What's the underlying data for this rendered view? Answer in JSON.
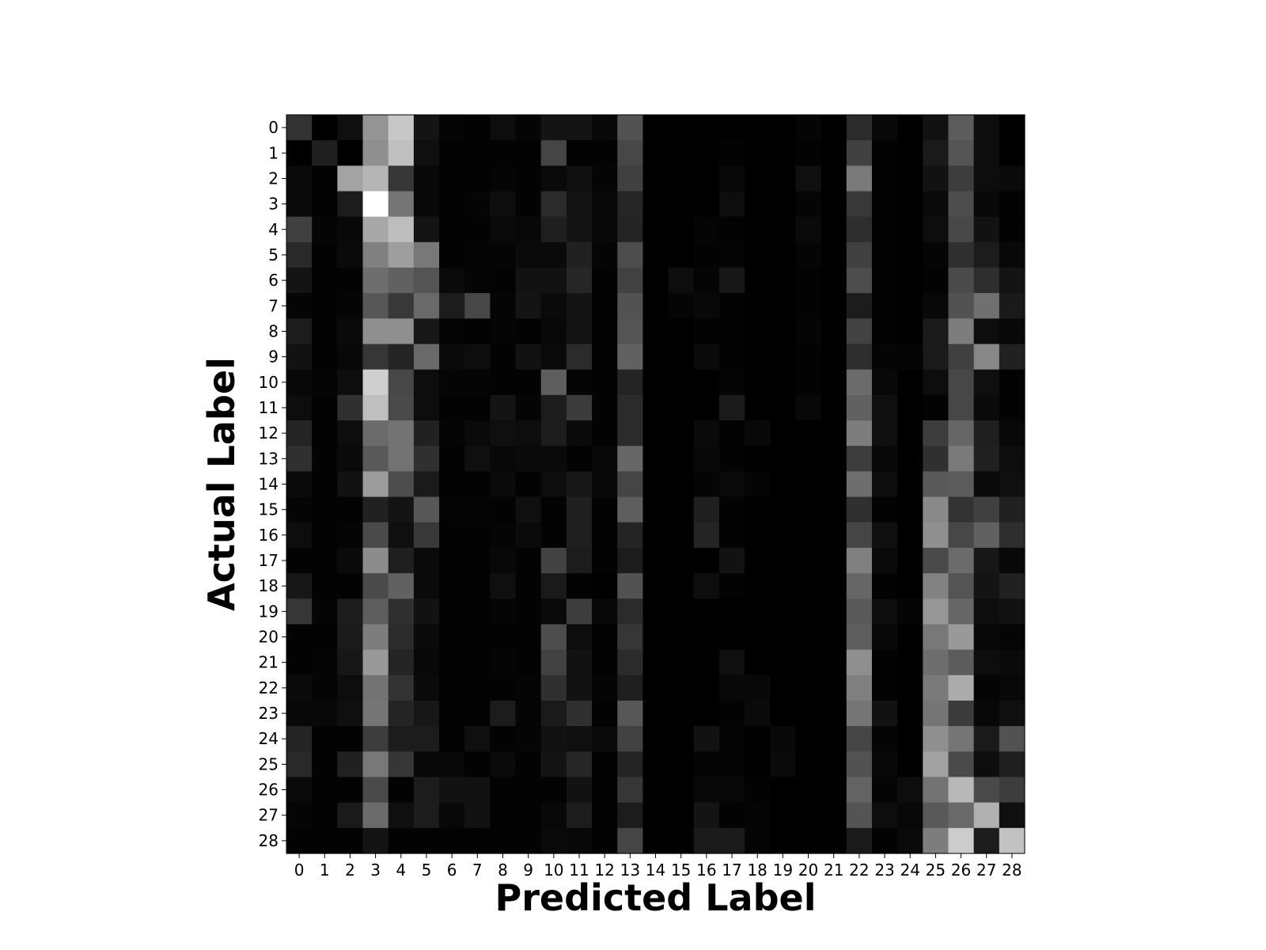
{
  "chart_data": {
    "type": "heatmap",
    "title": "",
    "xlabel": "Predicted Label",
    "ylabel": "Actual Label",
    "colormap": "gray",
    "x_categories": [
      "0",
      "1",
      "2",
      "3",
      "4",
      "5",
      "6",
      "7",
      "8",
      "9",
      "10",
      "11",
      "12",
      "13",
      "14",
      "15",
      "16",
      "17",
      "18",
      "19",
      "20",
      "21",
      "22",
      "23",
      "24",
      "25",
      "26",
      "27",
      "28"
    ],
    "y_categories": [
      "0",
      "1",
      "2",
      "3",
      "4",
      "5",
      "6",
      "7",
      "8",
      "9",
      "10",
      "11",
      "12",
      "13",
      "14",
      "15",
      "16",
      "17",
      "18",
      "19",
      "20",
      "21",
      "22",
      "23",
      "24",
      "25",
      "26",
      "27",
      "28"
    ],
    "value_range": [
      0,
      1
    ],
    "values": [
      [
        0.2,
        0.0,
        0.06,
        0.58,
        0.78,
        0.08,
        0.02,
        0.01,
        0.05,
        0.02,
        0.08,
        0.08,
        0.03,
        0.32,
        0.0,
        0.0,
        0.0,
        0.0,
        0.0,
        0.0,
        0.02,
        0.0,
        0.17,
        0.03,
        0.0,
        0.07,
        0.36,
        0.05,
        0.0
      ],
      [
        0.0,
        0.12,
        0.0,
        0.56,
        0.75,
        0.06,
        0.01,
        0.01,
        0.01,
        0.01,
        0.27,
        0.01,
        0.01,
        0.28,
        0.0,
        0.0,
        0.0,
        0.01,
        0.0,
        0.0,
        0.01,
        0.0,
        0.25,
        0.01,
        0.0,
        0.1,
        0.33,
        0.05,
        0.0
      ],
      [
        0.04,
        0.01,
        0.64,
        0.71,
        0.21,
        0.03,
        0.01,
        0.01,
        0.02,
        0.01,
        0.04,
        0.06,
        0.02,
        0.25,
        0.0,
        0.0,
        0.0,
        0.03,
        0.0,
        0.0,
        0.06,
        0.0,
        0.48,
        0.01,
        0.0,
        0.07,
        0.24,
        0.05,
        0.04
      ],
      [
        0.04,
        0.01,
        0.11,
        1.0,
        0.46,
        0.03,
        0.01,
        0.02,
        0.05,
        0.01,
        0.17,
        0.08,
        0.03,
        0.15,
        0.0,
        0.0,
        0.0,
        0.05,
        0.0,
        0.0,
        0.02,
        0.0,
        0.22,
        0.01,
        0.0,
        0.04,
        0.3,
        0.03,
        0.01
      ],
      [
        0.25,
        0.02,
        0.03,
        0.66,
        0.74,
        0.08,
        0.01,
        0.01,
        0.04,
        0.03,
        0.12,
        0.08,
        0.03,
        0.14,
        0.0,
        0.0,
        0.02,
        0.01,
        0.0,
        0.0,
        0.04,
        0.0,
        0.18,
        0.01,
        0.0,
        0.05,
        0.28,
        0.07,
        0.01
      ],
      [
        0.16,
        0.01,
        0.04,
        0.5,
        0.62,
        0.47,
        0.01,
        0.02,
        0.02,
        0.04,
        0.04,
        0.13,
        0.02,
        0.3,
        0.0,
        0.0,
        0.01,
        0.02,
        0.0,
        0.0,
        0.02,
        0.0,
        0.25,
        0.01,
        0.0,
        0.02,
        0.19,
        0.11,
        0.03
      ],
      [
        0.08,
        0.01,
        0.01,
        0.43,
        0.38,
        0.33,
        0.04,
        0.02,
        0.01,
        0.07,
        0.07,
        0.15,
        0.01,
        0.26,
        0.0,
        0.05,
        0.02,
        0.09,
        0.0,
        0.0,
        0.01,
        0.0,
        0.3,
        0.01,
        0.0,
        0.01,
        0.29,
        0.18,
        0.08
      ],
      [
        0.02,
        0.01,
        0.02,
        0.34,
        0.22,
        0.41,
        0.11,
        0.28,
        0.02,
        0.08,
        0.04,
        0.08,
        0.01,
        0.32,
        0.0,
        0.02,
        0.03,
        0.01,
        0.0,
        0.0,
        0.01,
        0.0,
        0.11,
        0.01,
        0.0,
        0.03,
        0.32,
        0.44,
        0.1
      ],
      [
        0.11,
        0.01,
        0.04,
        0.56,
        0.56,
        0.09,
        0.02,
        0.01,
        0.02,
        0.01,
        0.03,
        0.08,
        0.01,
        0.33,
        0.0,
        0.0,
        0.01,
        0.01,
        0.0,
        0.0,
        0.02,
        0.0,
        0.26,
        0.01,
        0.0,
        0.1,
        0.49,
        0.05,
        0.03
      ],
      [
        0.07,
        0.01,
        0.03,
        0.21,
        0.14,
        0.41,
        0.04,
        0.05,
        0.01,
        0.07,
        0.04,
        0.17,
        0.01,
        0.38,
        0.0,
        0.0,
        0.04,
        0.01,
        0.0,
        0.0,
        0.01,
        0.0,
        0.18,
        0.02,
        0.02,
        0.1,
        0.25,
        0.53,
        0.13
      ],
      [
        0.03,
        0.02,
        0.05,
        0.81,
        0.28,
        0.05,
        0.02,
        0.02,
        0.01,
        0.01,
        0.37,
        0.02,
        0.01,
        0.14,
        0.0,
        0.0,
        0.0,
        0.02,
        0.0,
        0.0,
        0.01,
        0.0,
        0.42,
        0.03,
        0.0,
        0.05,
        0.28,
        0.06,
        0.01
      ],
      [
        0.05,
        0.01,
        0.19,
        0.75,
        0.29,
        0.05,
        0.01,
        0.01,
        0.08,
        0.02,
        0.11,
        0.23,
        0.01,
        0.17,
        0.0,
        0.0,
        0.0,
        0.1,
        0.0,
        0.0,
        0.03,
        0.0,
        0.38,
        0.06,
        0.0,
        0.01,
        0.28,
        0.04,
        0.01
      ],
      [
        0.14,
        0.01,
        0.05,
        0.42,
        0.45,
        0.13,
        0.02,
        0.04,
        0.06,
        0.05,
        0.11,
        0.04,
        0.01,
        0.17,
        0.0,
        0.0,
        0.04,
        0.01,
        0.03,
        0.0,
        0.0,
        0.0,
        0.49,
        0.06,
        0.0,
        0.24,
        0.4,
        0.12,
        0.03
      ],
      [
        0.19,
        0.01,
        0.04,
        0.35,
        0.45,
        0.19,
        0.01,
        0.06,
        0.03,
        0.04,
        0.04,
        0.01,
        0.03,
        0.4,
        0.0,
        0.0,
        0.03,
        0.01,
        0.0,
        0.0,
        0.0,
        0.0,
        0.24,
        0.03,
        0.0,
        0.19,
        0.48,
        0.13,
        0.05
      ],
      [
        0.04,
        0.01,
        0.07,
        0.61,
        0.3,
        0.1,
        0.01,
        0.01,
        0.04,
        0.01,
        0.05,
        0.09,
        0.03,
        0.27,
        0.0,
        0.0,
        0.02,
        0.04,
        0.02,
        0.0,
        0.0,
        0.0,
        0.43,
        0.05,
        0.0,
        0.35,
        0.36,
        0.04,
        0.06
      ],
      [
        0.02,
        0.01,
        0.01,
        0.13,
        0.08,
        0.34,
        0.02,
        0.02,
        0.01,
        0.06,
        0.01,
        0.12,
        0.01,
        0.37,
        0.0,
        0.0,
        0.12,
        0.01,
        0.0,
        0.0,
        0.0,
        0.0,
        0.19,
        0.01,
        0.0,
        0.54,
        0.2,
        0.25,
        0.13
      ],
      [
        0.05,
        0.01,
        0.02,
        0.29,
        0.06,
        0.22,
        0.01,
        0.01,
        0.02,
        0.04,
        0.01,
        0.12,
        0.01,
        0.14,
        0.0,
        0.0,
        0.14,
        0.01,
        0.0,
        0.0,
        0.0,
        0.0,
        0.27,
        0.06,
        0.0,
        0.56,
        0.28,
        0.38,
        0.18
      ],
      [
        0.01,
        0.01,
        0.04,
        0.55,
        0.12,
        0.04,
        0.01,
        0.01,
        0.03,
        0.01,
        0.26,
        0.11,
        0.01,
        0.11,
        0.0,
        0.0,
        0.0,
        0.07,
        0.0,
        0.0,
        0.0,
        0.0,
        0.5,
        0.04,
        0.0,
        0.29,
        0.42,
        0.09,
        0.03
      ],
      [
        0.09,
        0.01,
        0.01,
        0.29,
        0.38,
        0.04,
        0.01,
        0.01,
        0.06,
        0.01,
        0.1,
        0.01,
        0.0,
        0.32,
        0.0,
        0.0,
        0.05,
        0.01,
        0.0,
        0.0,
        0.0,
        0.0,
        0.4,
        0.01,
        0.0,
        0.51,
        0.33,
        0.08,
        0.13
      ],
      [
        0.21,
        0.02,
        0.11,
        0.37,
        0.19,
        0.07,
        0.01,
        0.01,
        0.02,
        0.01,
        0.04,
        0.24,
        0.03,
        0.17,
        0.0,
        0.0,
        0.0,
        0.0,
        0.0,
        0.0,
        0.0,
        0.0,
        0.35,
        0.05,
        0.02,
        0.59,
        0.4,
        0.05,
        0.07
      ],
      [
        0.01,
        0.01,
        0.1,
        0.49,
        0.17,
        0.04,
        0.01,
        0.01,
        0.01,
        0.01,
        0.3,
        0.05,
        0.01,
        0.21,
        0.0,
        0.0,
        0.0,
        0.0,
        0.0,
        0.0,
        0.0,
        0.0,
        0.37,
        0.03,
        0.0,
        0.47,
        0.6,
        0.03,
        0.02
      ],
      [
        0.01,
        0.02,
        0.09,
        0.6,
        0.14,
        0.03,
        0.01,
        0.01,
        0.02,
        0.01,
        0.26,
        0.07,
        0.01,
        0.17,
        0.0,
        0.0,
        0.0,
        0.06,
        0.0,
        0.0,
        0.0,
        0.0,
        0.56,
        0.01,
        0.0,
        0.43,
        0.36,
        0.05,
        0.04
      ],
      [
        0.04,
        0.02,
        0.05,
        0.45,
        0.2,
        0.04,
        0.01,
        0.01,
        0.01,
        0.02,
        0.19,
        0.07,
        0.02,
        0.12,
        0.0,
        0.0,
        0.0,
        0.03,
        0.03,
        0.0,
        0.0,
        0.0,
        0.5,
        0.01,
        0.0,
        0.48,
        0.67,
        0.02,
        0.03
      ],
      [
        0.03,
        0.03,
        0.06,
        0.46,
        0.14,
        0.09,
        0.01,
        0.01,
        0.11,
        0.02,
        0.1,
        0.19,
        0.01,
        0.34,
        0.0,
        0.0,
        0.0,
        0.01,
        0.04,
        0.0,
        0.0,
        0.0,
        0.46,
        0.07,
        0.0,
        0.46,
        0.23,
        0.03,
        0.06
      ],
      [
        0.14,
        0.01,
        0.01,
        0.24,
        0.11,
        0.11,
        0.01,
        0.06,
        0.01,
        0.02,
        0.07,
        0.06,
        0.04,
        0.26,
        0.0,
        0.0,
        0.07,
        0.02,
        0.0,
        0.03,
        0.0,
        0.0,
        0.27,
        0.02,
        0.0,
        0.56,
        0.46,
        0.1,
        0.32
      ],
      [
        0.16,
        0.01,
        0.13,
        0.47,
        0.21,
        0.03,
        0.03,
        0.01,
        0.04,
        0.01,
        0.08,
        0.15,
        0.01,
        0.14,
        0.0,
        0.0,
        0.02,
        0.02,
        0.0,
        0.04,
        0.0,
        0.0,
        0.32,
        0.03,
        0.0,
        0.63,
        0.29,
        0.05,
        0.12
      ],
      [
        0.04,
        0.01,
        0.01,
        0.29,
        0.01,
        0.11,
        0.07,
        0.07,
        0.01,
        0.01,
        0.01,
        0.07,
        0.01,
        0.21,
        0.0,
        0.0,
        0.03,
        0.03,
        0.01,
        0.0,
        0.0,
        0.0,
        0.39,
        0.02,
        0.05,
        0.45,
        0.72,
        0.29,
        0.24
      ],
      [
        0.02,
        0.01,
        0.1,
        0.42,
        0.06,
        0.11,
        0.03,
        0.07,
        0.01,
        0.01,
        0.03,
        0.11,
        0.01,
        0.11,
        0.0,
        0.0,
        0.08,
        0.01,
        0.02,
        0.0,
        0.0,
        0.0,
        0.33,
        0.05,
        0.03,
        0.35,
        0.41,
        0.69,
        0.06
      ],
      [
        0.01,
        0.01,
        0.01,
        0.08,
        0.01,
        0.01,
        0.01,
        0.01,
        0.01,
        0.01,
        0.04,
        0.03,
        0.01,
        0.27,
        0.0,
        0.0,
        0.1,
        0.1,
        0.02,
        0.0,
        0.0,
        0.0,
        0.1,
        0.01,
        0.04,
        0.49,
        0.8,
        0.11,
        0.76
      ]
    ]
  }
}
